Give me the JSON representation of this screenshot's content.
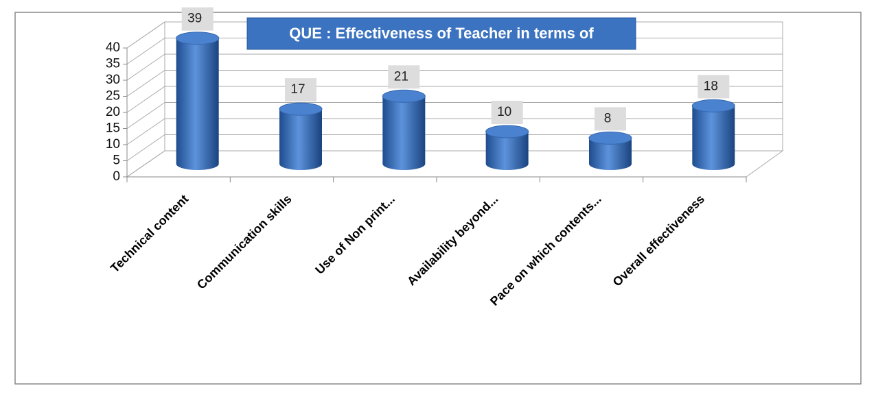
{
  "chart_data": {
    "type": "bar",
    "title": "QUE : Effectiveness of Teacher in terms of",
    "categories": [
      "Technical content",
      "Communication skills",
      "Use of Non print...",
      "Availability beyond...",
      "Pace on which contents...",
      "Overall effectiveness"
    ],
    "values": [
      39,
      17,
      21,
      10,
      8,
      18
    ],
    "color": "#3a6fbf",
    "ylim": [
      0,
      40
    ],
    "yticks": [
      0,
      5,
      10,
      15,
      20,
      25,
      30,
      35,
      40
    ],
    "grid": true
  }
}
